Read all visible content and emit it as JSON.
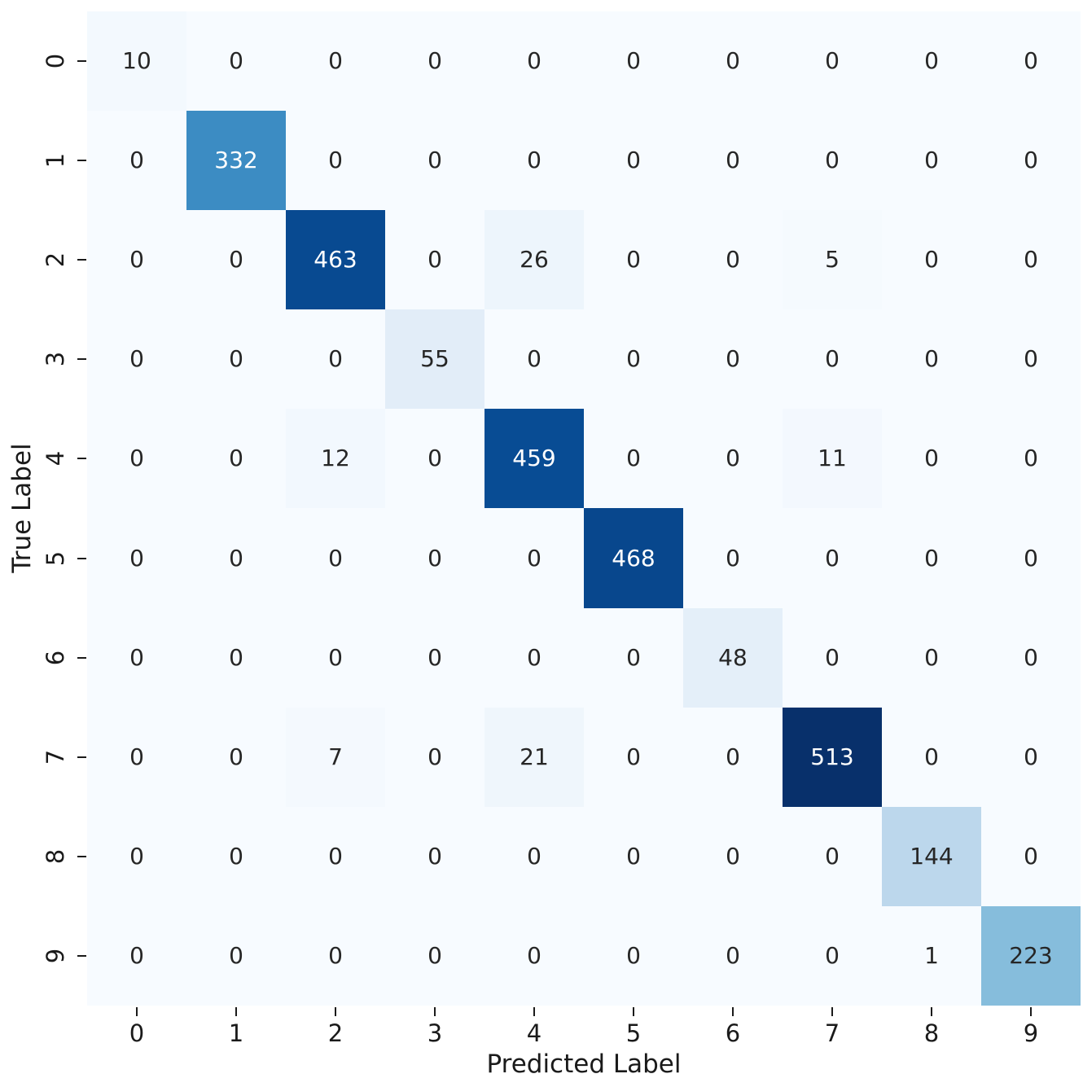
{
  "chart_data": {
    "type": "heatmap",
    "xlabel": "Predicted Label",
    "ylabel": "True Label",
    "x_tick_labels": [
      "0",
      "1",
      "2",
      "3",
      "4",
      "5",
      "6",
      "7",
      "8",
      "9"
    ],
    "y_tick_labels": [
      "0",
      "1",
      "2",
      "3",
      "4",
      "5",
      "6",
      "7",
      "8",
      "9"
    ],
    "matrix": [
      [
        10,
        0,
        0,
        0,
        0,
        0,
        0,
        0,
        0,
        0
      ],
      [
        0,
        332,
        0,
        0,
        0,
        0,
        0,
        0,
        0,
        0
      ],
      [
        0,
        0,
        463,
        0,
        26,
        0,
        0,
        5,
        0,
        0
      ],
      [
        0,
        0,
        0,
        55,
        0,
        0,
        0,
        0,
        0,
        0
      ],
      [
        0,
        0,
        12,
        0,
        459,
        0,
        0,
        11,
        0,
        0
      ],
      [
        0,
        0,
        0,
        0,
        0,
        468,
        0,
        0,
        0,
        0
      ],
      [
        0,
        0,
        0,
        0,
        0,
        0,
        48,
        0,
        0,
        0
      ],
      [
        0,
        0,
        7,
        0,
        21,
        0,
        0,
        513,
        0,
        0
      ],
      [
        0,
        0,
        0,
        0,
        0,
        0,
        0,
        0,
        144,
        0
      ],
      [
        0,
        0,
        0,
        0,
        0,
        0,
        0,
        0,
        1,
        223
      ]
    ],
    "vmin": 0,
    "vmax": 513,
    "colormap": "Blues",
    "colormap_stops": [
      [
        0.0,
        "#f7fbff"
      ],
      [
        0.125,
        "#deebf7"
      ],
      [
        0.25,
        "#c6dbef"
      ],
      [
        0.375,
        "#9ecae1"
      ],
      [
        0.5,
        "#6baed6"
      ],
      [
        0.625,
        "#4292c6"
      ],
      [
        0.75,
        "#2171b5"
      ],
      [
        0.875,
        "#08519c"
      ],
      [
        1.0,
        "#08306b"
      ]
    ],
    "annotation_color_dark": "#262626",
    "annotation_color_light": "#ffffff",
    "tick_color": "#1a1a1a",
    "grid": false,
    "legend": false
  }
}
